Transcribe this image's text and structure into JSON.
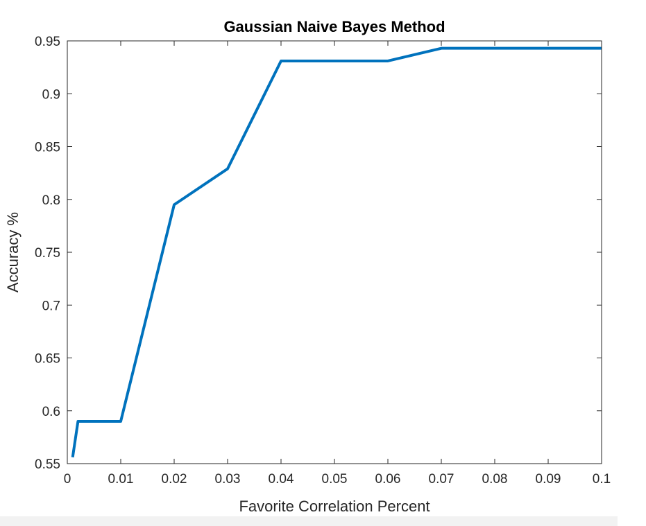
{
  "chart_data": {
    "type": "line",
    "title": "Gaussian Naive Bayes Method",
    "xlabel": "Favorite Correlation Percent",
    "ylabel": "Accuracy %",
    "xlim": [
      0,
      0.1
    ],
    "ylim": [
      0.55,
      0.95
    ],
    "x_ticks": [
      "0",
      "0.01",
      "0.02",
      "0.03",
      "0.04",
      "0.05",
      "0.06",
      "0.07",
      "0.08",
      "0.09",
      "0.1"
    ],
    "y_ticks": [
      "0.55",
      "0.6",
      "0.65",
      "0.7",
      "0.75",
      "0.8",
      "0.85",
      "0.9",
      "0.95"
    ],
    "grid": false,
    "line_color": "#0072BD",
    "series": [
      {
        "x": [
          0.001,
          0.002,
          0.01,
          0.02,
          0.03,
          0.04,
          0.05,
          0.06,
          0.07,
          0.08,
          0.09,
          0.1
        ],
        "values": [
          0.556,
          0.59,
          0.59,
          0.795,
          0.829,
          0.931,
          0.931,
          0.931,
          0.943,
          0.943,
          0.943,
          0.943
        ]
      }
    ]
  }
}
